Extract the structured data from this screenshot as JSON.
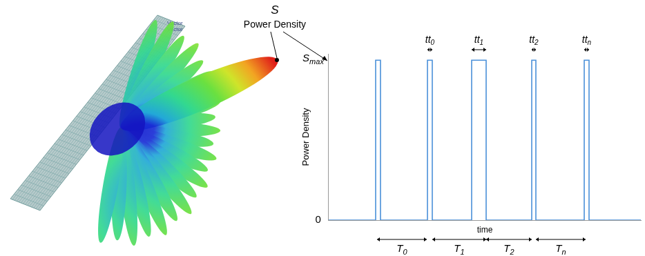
{
  "antenna": {
    "array_labels": [
      "Vector",
      "Vector"
    ],
    "annotation": {
      "symbol": "S",
      "text": "Power Density"
    }
  },
  "chart_data": {
    "type": "line",
    "y_label": "Power Density",
    "x_label": "time",
    "x": [
      0,
      68,
      68,
      75,
      75,
      143,
      143,
      150,
      150,
      207,
      207,
      228,
      228,
      294,
      294,
      300,
      300,
      370,
      370,
      377,
      377,
      452
    ],
    "values": [
      0,
      0,
      1,
      1,
      0,
      0,
      1,
      1,
      0,
      0,
      1,
      1,
      0,
      0,
      1,
      1,
      0,
      0,
      1,
      1,
      0,
      0
    ],
    "color": "#4a90d9",
    "xlim": [
      0,
      452
    ],
    "ylim": [
      0,
      1.04
    ],
    "yticks": [
      0
    ],
    "tick_labels": "y",
    "grid": false,
    "annotations": [
      {
        "label": "S",
        "subscript": "max",
        "y": 1
      }
    ],
    "pulse_widths": [
      {
        "label": "tt",
        "subscript": "0",
        "from": 143,
        "to": 150
      },
      {
        "label": "tt",
        "subscript": "1",
        "from": 207,
        "to": 228
      },
      {
        "label": "tt",
        "subscript": "2",
        "from": 294,
        "to": 300
      },
      {
        "label": "tt",
        "subscript": "n",
        "from": 370,
        "to": 377
      }
    ],
    "intervals": [
      {
        "label": "T",
        "subscript": "0",
        "from": 70,
        "to": 142
      },
      {
        "label": "T",
        "subscript": "1",
        "from": 150,
        "to": 228
      },
      {
        "label": "T",
        "subscript": "2",
        "from": 228,
        "to": 294
      },
      {
        "label": "T",
        "subscript": "n",
        "from": 300,
        "to": 372
      }
    ]
  }
}
